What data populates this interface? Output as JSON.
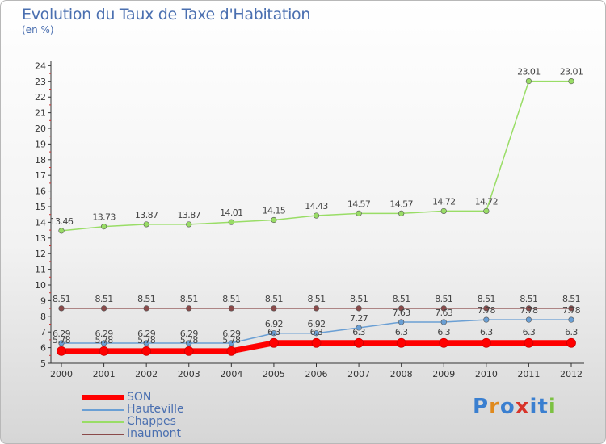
{
  "chart_data": {
    "type": "line",
    "title": "Evolution du Taux de Taxe d'Habitation",
    "subtitle": "(en %)",
    "x": [
      "2000",
      "2001",
      "2002",
      "2003",
      "2004",
      "2005",
      "2006",
      "2007",
      "2008",
      "2009",
      "2010",
      "2011",
      "2012"
    ],
    "ylim": [
      5,
      24
    ],
    "yticks": [
      5,
      6,
      7,
      8,
      9,
      10,
      11,
      12,
      13,
      14,
      15,
      16,
      17,
      18,
      19,
      20,
      21,
      22,
      23,
      24
    ],
    "grid": false,
    "legend_position": "bottom-left",
    "series": [
      {
        "name": "SON",
        "color": "#ff0000",
        "values": [
          5.78,
          5.78,
          5.78,
          5.78,
          5.78,
          6.3,
          6.3,
          6.3,
          6.3,
          6.3,
          6.3,
          6.3,
          6.3
        ],
        "labels": [
          "5.78",
          "5.78",
          "5.78",
          "5.78",
          "5.78",
          "6.3",
          "6.3",
          "6.3",
          "6.3",
          "6.3",
          "6.3",
          "6.3",
          "6.3"
        ]
      },
      {
        "name": "Hauteville",
        "color": "#6a9fd4",
        "values": [
          6.29,
          6.29,
          6.29,
          6.29,
          6.29,
          6.92,
          6.92,
          7.27,
          7.63,
          7.63,
          7.78,
          7.78,
          7.78
        ],
        "labels": [
          "6.29",
          "6.29",
          "6.29",
          "6.29",
          "6.29",
          "6.92",
          "6.92",
          "7.27",
          "7.63",
          "7.63",
          "7.78",
          "7.78",
          "7.78"
        ]
      },
      {
        "name": "Chappes",
        "color": "#99dd66",
        "values": [
          13.46,
          13.73,
          13.87,
          13.87,
          14.01,
          14.15,
          14.43,
          14.57,
          14.57,
          14.72,
          14.72,
          23.01,
          23.01
        ],
        "labels": [
          "13.46",
          "13.73",
          "13.87",
          "13.87",
          "14.01",
          "14.15",
          "14.43",
          "14.57",
          "14.57",
          "14.72",
          "14.72",
          "23.01",
          "23.01"
        ]
      },
      {
        "name": "Inaumont",
        "color": "#8a4a4a",
        "values": [
          8.51,
          8.51,
          8.51,
          8.51,
          8.51,
          8.51,
          8.51,
          8.51,
          8.51,
          8.51,
          8.51,
          8.51,
          8.51
        ],
        "labels": [
          "8.51",
          "8.51",
          "8.51",
          "8.51",
          "8.51",
          "8.51",
          "8.51",
          "8.51",
          "8.51",
          "8.51",
          "8.51",
          "8.51",
          "8.51"
        ]
      }
    ]
  },
  "legend": {
    "items": [
      {
        "label": "SON",
        "color": "#ff0000"
      },
      {
        "label": "Hauteville",
        "color": "#6a9fd4"
      },
      {
        "label": "Chappes",
        "color": "#99dd66"
      },
      {
        "label": "Inaumont",
        "color": "#8a4a4a"
      }
    ]
  },
  "logo": {
    "text": "Proxiti"
  }
}
